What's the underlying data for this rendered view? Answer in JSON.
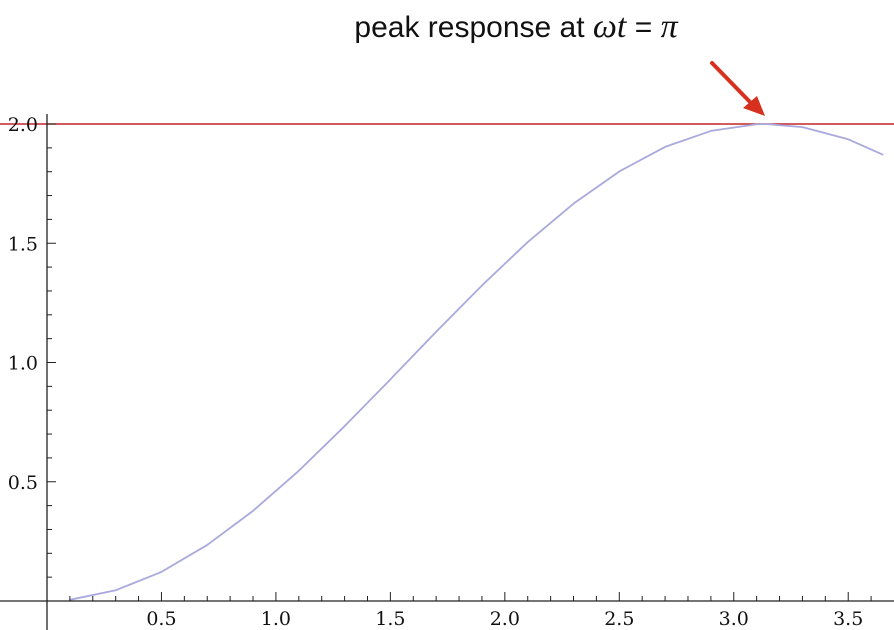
{
  "chart_data": {
    "type": "line",
    "title": "",
    "xlabel": "",
    "ylabel": "",
    "xlim": [
      0,
      3.7
    ],
    "ylim": [
      0,
      2.0
    ],
    "x_ticks": [
      "0.5",
      "1.0",
      "1.5",
      "2.0",
      "2.5",
      "3.0",
      "3.5"
    ],
    "y_ticks": [
      "0.5",
      "1.0",
      "1.5",
      "2.0"
    ],
    "grid": false,
    "series": [
      {
        "x": [
          0.1,
          0.3,
          0.5,
          0.7,
          0.9,
          1.1,
          1.3,
          1.5,
          1.7,
          1.9,
          2.1,
          2.3,
          2.5,
          2.7,
          2.9,
          3.1,
          3.14,
          3.3,
          3.5,
          3.65
        ],
        "y": [
          0.005,
          0.045,
          0.122,
          0.235,
          0.378,
          0.546,
          0.733,
          0.929,
          1.129,
          1.323,
          1.505,
          1.666,
          1.801,
          1.904,
          1.971,
          1.999,
          2.0,
          1.987,
          1.936,
          1.872
        ],
        "color": "#a9a9dd"
      }
    ],
    "reference_lines": [
      {
        "y": 2.0,
        "color": "#c1272d"
      }
    ],
    "annotations": [
      {
        "prefix": "peak response at ",
        "math_omega": "ω",
        "math_t": "t",
        "middle": " = ",
        "math_pi": "π",
        "arrow_color": "#d6311f"
      }
    ]
  }
}
